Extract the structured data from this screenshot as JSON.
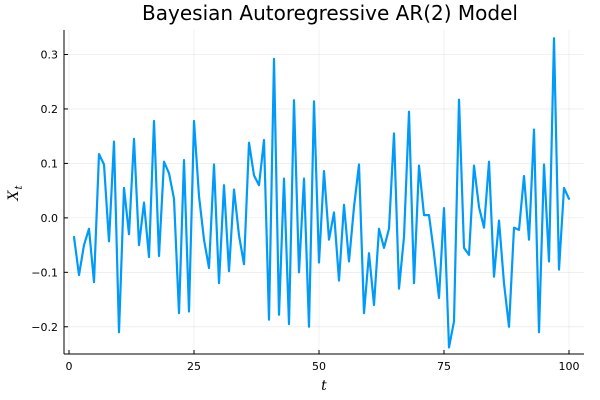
{
  "chart_data": {
    "type": "line",
    "title": "Bayesian Autoregressive AR(2) Model",
    "xlabel": "t",
    "ylabel_main": "X",
    "ylabel_sub": "t",
    "xlim": [
      -1,
      103
    ],
    "ylim": [
      -0.25,
      0.345
    ],
    "xticks": [
      0,
      25,
      50,
      75,
      100
    ],
    "xtick_labels": [
      "0",
      "25",
      "50",
      "75",
      "100"
    ],
    "yticks": [
      -0.2,
      -0.1,
      0.0,
      0.1,
      0.2,
      0.3
    ],
    "ytick_labels": [
      "−0.2",
      "−0.1",
      "0.0",
      "0.1",
      "0.2",
      "0.3"
    ],
    "grid": true,
    "legend": "none",
    "series": [
      {
        "color": "#009af9",
        "x": [
          1,
          2,
          3,
          4,
          5,
          6,
          7,
          8,
          9,
          10,
          11,
          12,
          13,
          14,
          15,
          16,
          17,
          18,
          19,
          20,
          21,
          22,
          23,
          24,
          25,
          26,
          27,
          28,
          29,
          30,
          31,
          32,
          33,
          34,
          35,
          36,
          37,
          38,
          39,
          40,
          41,
          42,
          43,
          44,
          45,
          46,
          47,
          48,
          49,
          50,
          51,
          52,
          53,
          54,
          55,
          56,
          57,
          58,
          59,
          60,
          61,
          62,
          63,
          64,
          65,
          66,
          67,
          68,
          69,
          70,
          71,
          72,
          73,
          74,
          75,
          76,
          77,
          78,
          79,
          80,
          81,
          82,
          83,
          84,
          85,
          86,
          87,
          88,
          89,
          90,
          91,
          92,
          93,
          94,
          95,
          96,
          97,
          98,
          99,
          100
        ],
        "values": [
          -0.035,
          -0.105,
          -0.05,
          -0.02,
          -0.118,
          0.117,
          0.098,
          -0.043,
          0.14,
          -0.21,
          0.055,
          -0.03,
          0.145,
          -0.05,
          0.028,
          -0.072,
          0.178,
          -0.07,
          0.103,
          0.082,
          0.035,
          -0.175,
          0.106,
          -0.172,
          0.178,
          0.04,
          -0.04,
          -0.092,
          0.098,
          -0.12,
          0.06,
          -0.098,
          0.052,
          -0.032,
          -0.085,
          0.138,
          0.078,
          0.06,
          0.143,
          -0.187,
          0.292,
          -0.178,
          0.072,
          -0.195,
          0.216,
          -0.1,
          0.072,
          -0.2,
          0.214,
          -0.082,
          0.086,
          -0.04,
          0.01,
          -0.115,
          0.024,
          -0.08,
          0.02,
          0.098,
          -0.175,
          -0.065,
          -0.16,
          -0.02,
          -0.055,
          -0.02,
          0.155,
          -0.13,
          -0.035,
          0.195,
          -0.12,
          0.096,
          0.005,
          0.005,
          -0.065,
          -0.147,
          0.018,
          -0.238,
          -0.19,
          0.217,
          -0.055,
          -0.068,
          0.096,
          0.02,
          -0.018,
          0.103,
          -0.108,
          -0.005,
          -0.12,
          -0.2,
          -0.018,
          -0.022,
          0.077,
          -0.04,
          0.162,
          -0.21,
          0.098,
          -0.08,
          0.33,
          -0.095,
          0.055,
          0.035
        ]
      }
    ]
  }
}
